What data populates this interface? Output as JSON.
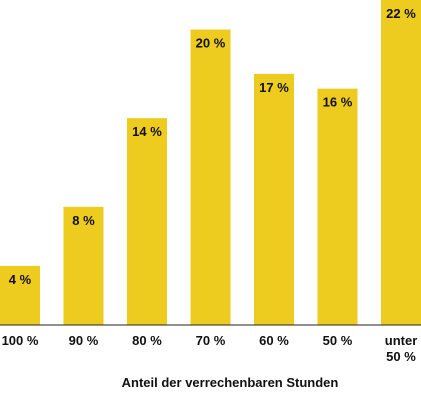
{
  "chart_data": {
    "type": "bar",
    "categories": [
      "100 %",
      "90 %",
      "80 %",
      "70 %",
      "60 %",
      "50 %",
      "unter 50 %"
    ],
    "category_lines": [
      [
        "100 %"
      ],
      [
        "90 %"
      ],
      [
        "80 %"
      ],
      [
        "70 %"
      ],
      [
        "60 %"
      ],
      [
        "50 %"
      ],
      [
        "unter",
        "50 %"
      ]
    ],
    "values": [
      4,
      8,
      14,
      20,
      17,
      16,
      22
    ],
    "data_labels": [
      "4 %",
      "8 %",
      "14 %",
      "20 %",
      "17 %",
      "16 %",
      "22 %"
    ],
    "title": "",
    "xlabel": "Anteil der verrechenbaren Stunden",
    "ylabel": "",
    "ylim": [
      0,
      22
    ],
    "grid": false,
    "legend": "none",
    "bar_color": "#EDCB1F"
  }
}
